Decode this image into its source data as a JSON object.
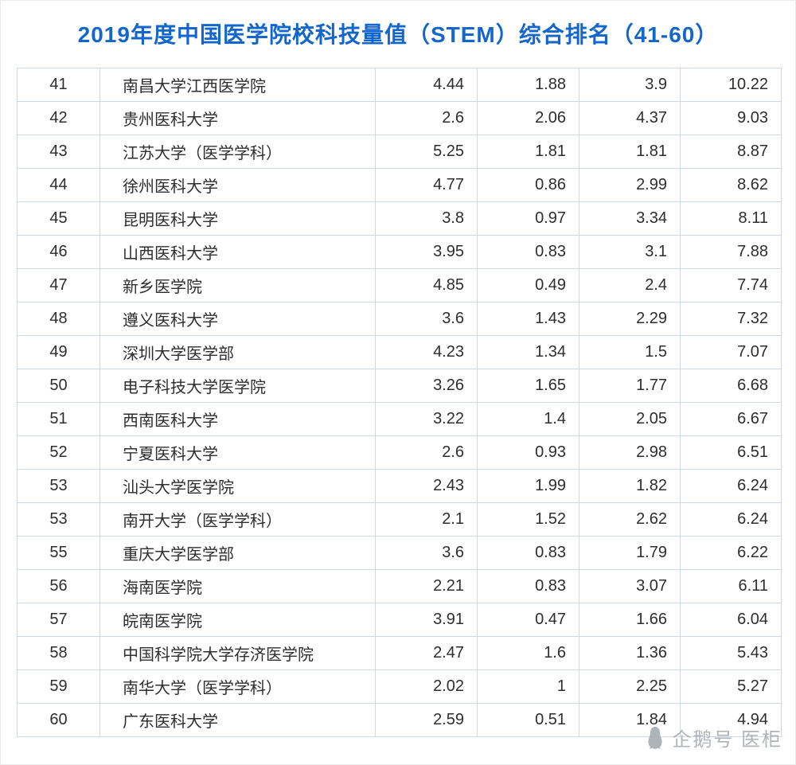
{
  "title": "2019年度中国医学院校科技量值（STEM）综合排名（41-60）",
  "chart_data": {
    "type": "table",
    "title": "2019年度中国医学院校科技量值（STEM）综合排名（41-60）",
    "rows": [
      [
        "41",
        "南昌大学江西医学院",
        "4.44",
        "1.88",
        "3.9",
        "10.22"
      ],
      [
        "42",
        "贵州医科大学",
        "2.6",
        "2.06",
        "4.37",
        "9.03"
      ],
      [
        "43",
        "江苏大学（医学学科）",
        "5.25",
        "1.81",
        "1.81",
        "8.87"
      ],
      [
        "44",
        "徐州医科大学",
        "4.77",
        "0.86",
        "2.99",
        "8.62"
      ],
      [
        "45",
        "昆明医科大学",
        "3.8",
        "0.97",
        "3.34",
        "8.11"
      ],
      [
        "46",
        "山西医科大学",
        "3.95",
        "0.83",
        "3.1",
        "7.88"
      ],
      [
        "47",
        "新乡医学院",
        "4.85",
        "0.49",
        "2.4",
        "7.74"
      ],
      [
        "48",
        "遵义医科大学",
        "3.6",
        "1.43",
        "2.29",
        "7.32"
      ],
      [
        "49",
        "深圳大学医学部",
        "4.23",
        "1.34",
        "1.5",
        "7.07"
      ],
      [
        "50",
        "电子科技大学医学院",
        "3.26",
        "1.65",
        "1.77",
        "6.68"
      ],
      [
        "51",
        "西南医科大学",
        "3.22",
        "1.4",
        "2.05",
        "6.67"
      ],
      [
        "52",
        "宁夏医科大学",
        "2.6",
        "0.93",
        "2.98",
        "6.51"
      ],
      [
        "53",
        "汕头大学医学院",
        "2.43",
        "1.99",
        "1.82",
        "6.24"
      ],
      [
        "53",
        "南开大学（医学学科）",
        "2.1",
        "1.52",
        "2.62",
        "6.24"
      ],
      [
        "55",
        "重庆大学医学部",
        "3.6",
        "0.83",
        "1.79",
        "6.22"
      ],
      [
        "56",
        "海南医学院",
        "2.21",
        "0.83",
        "3.07",
        "6.11"
      ],
      [
        "57",
        "皖南医学院",
        "3.91",
        "0.47",
        "1.66",
        "6.04"
      ],
      [
        "58",
        "中国科学院大学存济医学院",
        "2.47",
        "1.6",
        "1.36",
        "5.43"
      ],
      [
        "59",
        "南华大学（医学学科）",
        "2.02",
        "1",
        "2.25",
        "5.27"
      ],
      [
        "60",
        "广东医科大学",
        "2.59",
        "0.51",
        "1.84",
        "4.94"
      ]
    ]
  },
  "watermark": {
    "label": "企鹅号 医柜"
  },
  "colors": {
    "title": "#1266cc",
    "border": "#ccdae8",
    "text": "#2e2e2e",
    "watermark": "#a9aeb4"
  }
}
